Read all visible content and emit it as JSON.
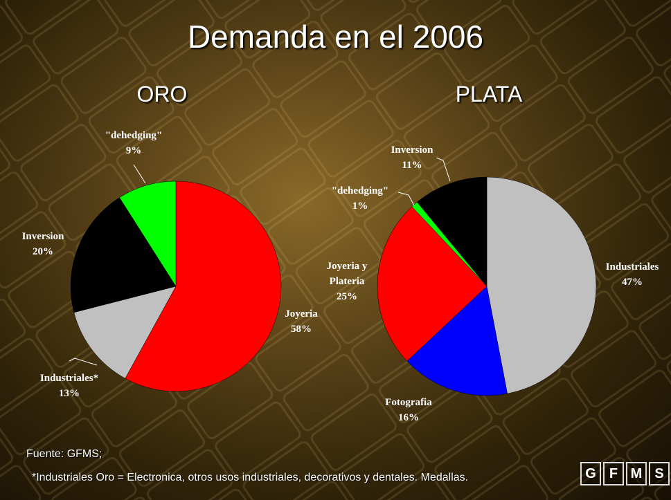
{
  "title": "Demanda en el 2006",
  "source": "Fuente: GFMS;",
  "footnote": "*Industriales Oro = Electronica, otros usos industriales, decorativos y dentales.  Medallas.",
  "logo": [
    "G",
    "F",
    "M",
    "S"
  ],
  "chart_data": [
    {
      "type": "pie",
      "title": "ORO",
      "categories": [
        "Joyeria",
        "Industriales*",
        "Inversion",
        "\"dehedging\""
      ],
      "values": [
        58,
        13,
        20,
        9
      ],
      "value_labels": [
        "58%",
        "13%",
        "20%",
        "9%"
      ],
      "colors": [
        "#ff0000",
        "#c0c0c0",
        "#000000",
        "#00ff00"
      ]
    },
    {
      "type": "pie",
      "title": "PLATA",
      "categories": [
        "Industriales",
        "Fotografia",
        "Joyeria y Plateria",
        "\"dehedging\"",
        "Inversion"
      ],
      "values": [
        47,
        16,
        25,
        1,
        11
      ],
      "value_labels": [
        "47%",
        "16%",
        "25%",
        "1%",
        "11%"
      ],
      "colors": [
        "#c0c0c0",
        "#0000ff",
        "#ff0000",
        "#00ff00",
        "#000000"
      ]
    }
  ]
}
